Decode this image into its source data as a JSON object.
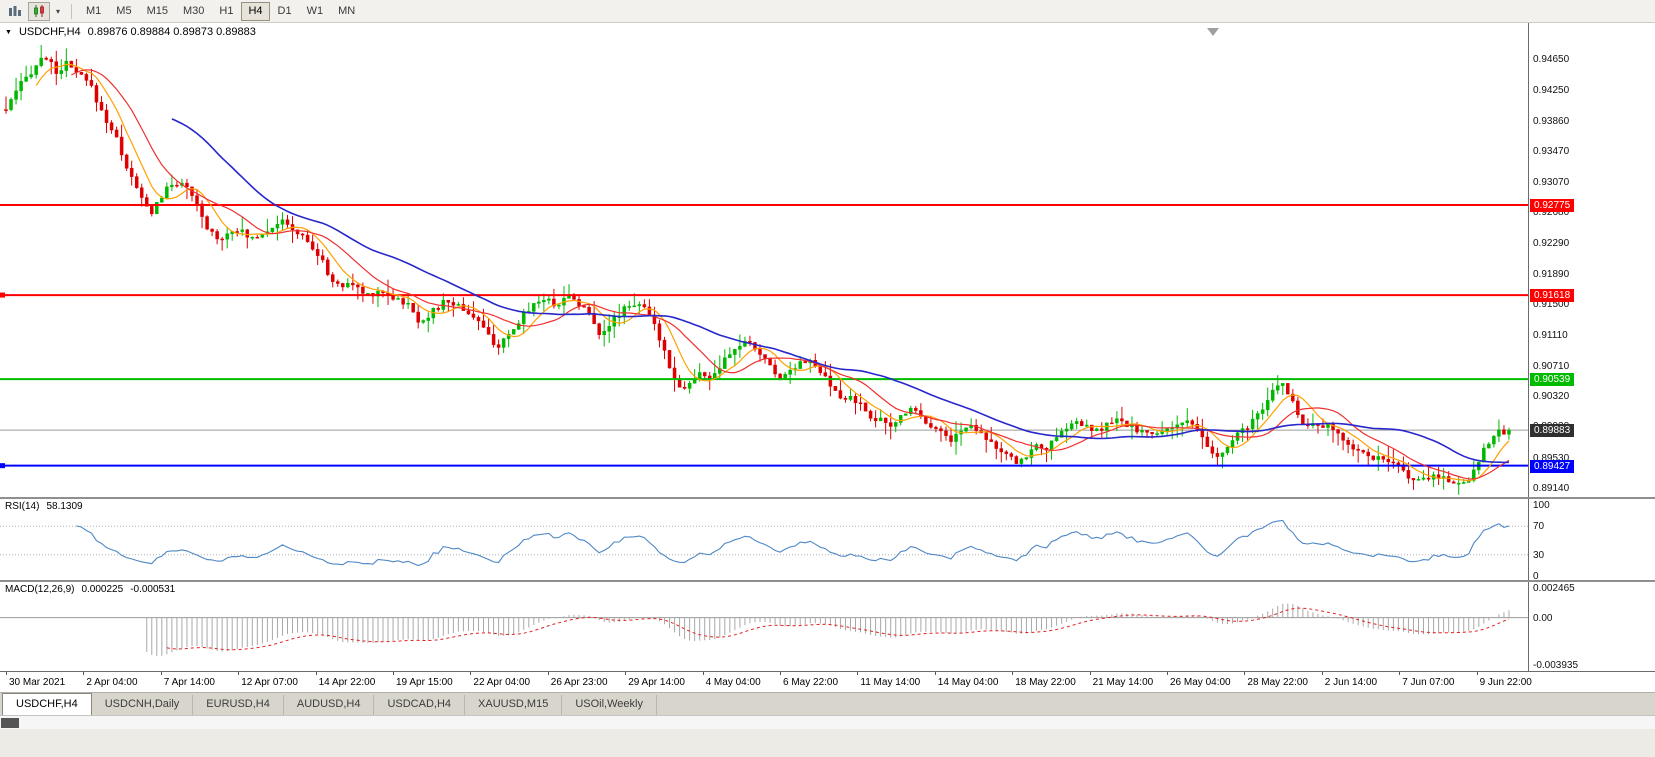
{
  "toolbar": {
    "timeframes": [
      {
        "label": "M1",
        "active": false
      },
      {
        "label": "M5",
        "active": false
      },
      {
        "label": "M15",
        "active": false
      },
      {
        "label": "M30",
        "active": false
      },
      {
        "label": "H1",
        "active": false
      },
      {
        "label": "H4",
        "active": true
      },
      {
        "label": "D1",
        "active": false
      },
      {
        "label": "W1",
        "active": false
      },
      {
        "label": "MN",
        "active": false
      }
    ]
  },
  "chart": {
    "symbol_period": "USDCHF,H4",
    "ohlc": "0.89876 0.89884 0.89873 0.89883",
    "price_axis_labels": [
      "0.94650",
      "0.94250",
      "0.93860",
      "0.93470",
      "0.93070",
      "0.92680",
      "0.92290",
      "0.91890",
      "0.91500",
      "0.91110",
      "0.90710",
      "0.90320",
      "0.89930",
      "0.89530",
      "0.89140"
    ],
    "hlines": [
      {
        "price": 0.92775,
        "label": "0.92775",
        "color": "#FF0000",
        "handles": false
      },
      {
        "price": 0.91618,
        "label": "0.91618",
        "color": "#FF0000",
        "handles": true
      },
      {
        "price": 0.90539,
        "label": "0.90539",
        "color": "#00BB00",
        "handles": false
      },
      {
        "price": 0.89427,
        "label": "0.89427",
        "color": "#0000FF",
        "handles": true
      }
    ],
    "current_price": {
      "value": 0.89883,
      "label": "0.89883",
      "tag_bg": "#2f2f2f"
    }
  },
  "rsi_panel": {
    "name": "RSI(14)",
    "value": "58.1309",
    "axis_labels": [
      "100",
      "70",
      "30",
      "0"
    ],
    "axis_values": [
      100,
      70,
      30,
      0
    ],
    "levels": [
      70,
      30
    ]
  },
  "macd_panel": {
    "name": "MACD(12,26,9)",
    "value_main": "0.000225",
    "value_signal": "-0.000531",
    "axis_labels": [
      "0.002465",
      "0.00",
      "-0.003935"
    ],
    "axis_values": [
      0.002465,
      0,
      -0.003935
    ]
  },
  "time_axis": [
    "30 Mar 2021",
    "2 Apr 04:00",
    "7 Apr 14:00",
    "12 Apr 07:00",
    "14 Apr 22:00",
    "19 Apr 15:00",
    "22 Apr 04:00",
    "26 Apr 23:00",
    "29 Apr 14:00",
    "4 May 04:00",
    "6 May 22:00",
    "11 May 14:00",
    "14 May 04:00",
    "18 May 22:00",
    "21 May 14:00",
    "26 May 04:00",
    "28 May 22:00",
    "2 Jun 14:00",
    "7 Jun 07:00",
    "9 Jun 22:00"
  ],
  "tabs": [
    {
      "label": "USDCHF,H4",
      "active": true
    },
    {
      "label": "USDCNH,Daily",
      "active": false
    },
    {
      "label": "EURUSD,H4",
      "active": false
    },
    {
      "label": "AUDUSD,H4",
      "active": false
    },
    {
      "label": "USDCAD,H4",
      "active": false
    },
    {
      "label": "XAUUSD,M15",
      "active": false
    },
    {
      "label": "USOil,Weekly",
      "active": false
    }
  ],
  "chart_data": {
    "type": "candlestick",
    "symbol": "USDCHF",
    "timeframe": "H4",
    "ylim": [
      0.8914,
      0.9465
    ],
    "last_close": 0.89883,
    "candle_count": 300,
    "horizontal_levels": [
      0.92775,
      0.91618,
      0.90539,
      0.89427
    ],
    "up_color": "#00B800",
    "down_color": "#DE0000",
    "current_line_color": "#9a9a9a",
    "price_path": [
      [
        0.0,
        0.94
      ],
      [
        0.01,
        0.9432
      ],
      [
        0.019,
        0.9455
      ],
      [
        0.026,
        0.947
      ],
      [
        0.033,
        0.9448
      ],
      [
        0.04,
        0.9458
      ],
      [
        0.048,
        0.9445
      ],
      [
        0.056,
        0.9432
      ],
      [
        0.063,
        0.94
      ],
      [
        0.073,
        0.9365
      ],
      [
        0.082,
        0.9318
      ],
      [
        0.089,
        0.929
      ],
      [
        0.096,
        0.9266
      ],
      [
        0.103,
        0.9288
      ],
      [
        0.11,
        0.9303
      ],
      [
        0.117,
        0.9308
      ],
      [
        0.126,
        0.928
      ],
      [
        0.134,
        0.9246
      ],
      [
        0.143,
        0.9234
      ],
      [
        0.152,
        0.925
      ],
      [
        0.162,
        0.9234
      ],
      [
        0.172,
        0.9244
      ],
      [
        0.182,
        0.9257
      ],
      [
        0.192,
        0.9245
      ],
      [
        0.202,
        0.9228
      ],
      [
        0.211,
        0.9202
      ],
      [
        0.22,
        0.9172
      ],
      [
        0.229,
        0.9178
      ],
      [
        0.239,
        0.9162
      ],
      [
        0.249,
        0.9168
      ],
      [
        0.259,
        0.9158
      ],
      [
        0.267,
        0.915
      ],
      [
        0.275,
        0.9128
      ],
      [
        0.284,
        0.914
      ],
      [
        0.293,
        0.9155
      ],
      [
        0.303,
        0.9146
      ],
      [
        0.313,
        0.9132
      ],
      [
        0.321,
        0.9108
      ],
      [
        0.328,
        0.9096
      ],
      [
        0.336,
        0.911
      ],
      [
        0.346,
        0.9142
      ],
      [
        0.356,
        0.9158
      ],
      [
        0.366,
        0.915
      ],
      [
        0.376,
        0.9162
      ],
      [
        0.386,
        0.9142
      ],
      [
        0.395,
        0.9114
      ],
      [
        0.403,
        0.9126
      ],
      [
        0.412,
        0.9148
      ],
      [
        0.421,
        0.9152
      ],
      [
        0.429,
        0.9132
      ],
      [
        0.436,
        0.9102
      ],
      [
        0.443,
        0.9064
      ],
      [
        0.449,
        0.904
      ],
      [
        0.456,
        0.905
      ],
      [
        0.463,
        0.9062
      ],
      [
        0.47,
        0.9054
      ],
      [
        0.477,
        0.9074
      ],
      [
        0.484,
        0.909
      ],
      [
        0.491,
        0.9102
      ],
      [
        0.498,
        0.9094
      ],
      [
        0.505,
        0.908
      ],
      [
        0.511,
        0.9062
      ],
      [
        0.517,
        0.9056
      ],
      [
        0.524,
        0.907
      ],
      [
        0.53,
        0.908
      ],
      [
        0.537,
        0.9073
      ],
      [
        0.543,
        0.906
      ],
      [
        0.55,
        0.904
      ],
      [
        0.557,
        0.9026
      ],
      [
        0.563,
        0.9032
      ],
      [
        0.57,
        0.9016
      ],
      [
        0.576,
        0.9006
      ],
      [
        0.583,
        0.8999
      ],
      [
        0.589,
        0.8991
      ],
      [
        0.596,
        0.9008
      ],
      [
        0.602,
        0.9019
      ],
      [
        0.609,
        0.9006
      ],
      [
        0.615,
        0.8996
      ],
      [
        0.622,
        0.8986
      ],
      [
        0.628,
        0.8976
      ],
      [
        0.635,
        0.8986
      ],
      [
        0.641,
        0.8995
      ],
      [
        0.648,
        0.8989
      ],
      [
        0.654,
        0.8976
      ],
      [
        0.661,
        0.8962
      ],
      [
        0.667,
        0.8952
      ],
      [
        0.674,
        0.8946
      ],
      [
        0.68,
        0.8959
      ],
      [
        0.687,
        0.8969
      ],
      [
        0.693,
        0.8965
      ],
      [
        0.7,
        0.8979
      ],
      [
        0.706,
        0.8993
      ],
      [
        0.713,
        0.8999
      ],
      [
        0.719,
        0.8991
      ],
      [
        0.726,
        0.8986
      ],
      [
        0.732,
        0.8995
      ],
      [
        0.739,
        0.9
      ],
      [
        0.745,
        0.8995
      ],
      [
        0.752,
        0.899
      ],
      [
        0.758,
        0.8985
      ],
      [
        0.765,
        0.898
      ],
      [
        0.771,
        0.899
      ],
      [
        0.778,
        0.8995
      ],
      [
        0.784,
        0.9
      ],
      [
        0.791,
        0.899
      ],
      [
        0.797,
        0.8976
      ],
      [
        0.804,
        0.8951
      ],
      [
        0.81,
        0.896
      ],
      [
        0.817,
        0.8975
      ],
      [
        0.823,
        0.899
      ],
      [
        0.83,
        0.9
      ],
      [
        0.836,
        0.9012
      ],
      [
        0.842,
        0.9036
      ],
      [
        0.848,
        0.9051
      ],
      [
        0.855,
        0.9032
      ],
      [
        0.861,
        0.9003
      ],
      [
        0.868,
        0.8991
      ],
      [
        0.874,
        0.8996
      ],
      [
        0.881,
        0.8991
      ],
      [
        0.887,
        0.8981
      ],
      [
        0.894,
        0.8971
      ],
      [
        0.9,
        0.8961
      ],
      [
        0.907,
        0.8956
      ],
      [
        0.913,
        0.8951
      ],
      [
        0.92,
        0.8946
      ],
      [
        0.926,
        0.8941
      ],
      [
        0.933,
        0.8931
      ],
      [
        0.939,
        0.8921
      ],
      [
        0.946,
        0.8926
      ],
      [
        0.952,
        0.8931
      ],
      [
        0.959,
        0.8925
      ],
      [
        0.965,
        0.892
      ],
      [
        0.972,
        0.8922
      ],
      [
        0.978,
        0.8942
      ],
      [
        0.985,
        0.8972
      ],
      [
        0.992,
        0.8984
      ],
      [
        1.0,
        0.89883
      ]
    ],
    "indicators": {
      "moving_averages": [
        {
          "type": "SMA",
          "period": 7,
          "color": "#FFA000",
          "width": 1.2
        },
        {
          "type": "SMA",
          "period": 14,
          "color": "#F03030",
          "width": 1.2
        },
        {
          "type": "SMA",
          "period": 34,
          "color": "#2727CC",
          "width": 1.6
        }
      ],
      "rsi": {
        "period": 14,
        "current": 58.1309,
        "range": [
          0,
          100
        ],
        "levels": [
          70,
          30
        ],
        "color": "#4E87C7"
      },
      "macd": {
        "fast": 12,
        "slow": 26,
        "signal_period": 9,
        "current_main": 0.000225,
        "current_signal": -0.000531,
        "range": [
          -0.003935,
          0.002465
        ],
        "histogram_color": "#A8A8A8",
        "signal_color": "#E02020"
      }
    }
  }
}
